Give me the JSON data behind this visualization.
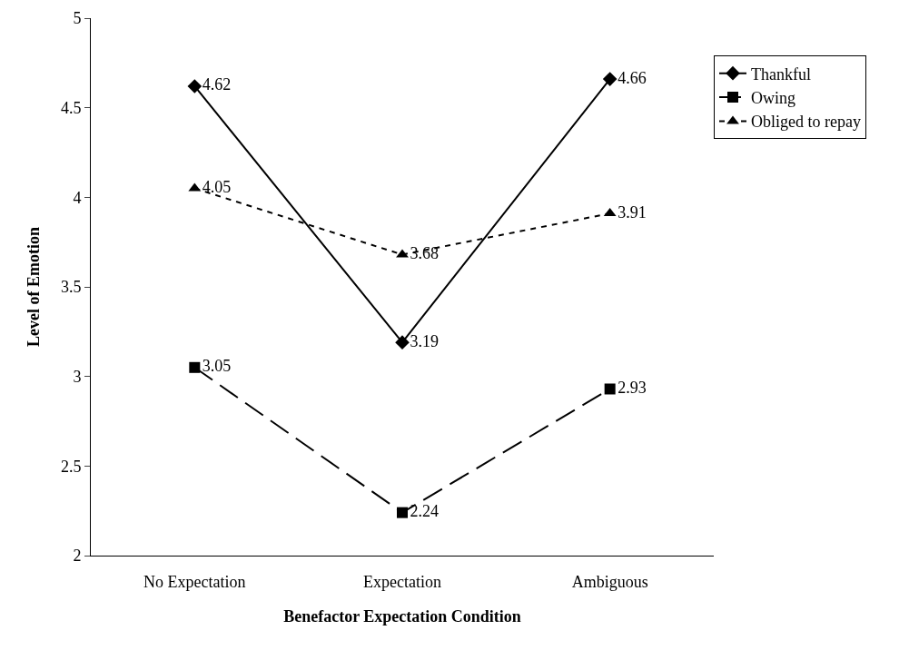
{
  "chart_data": {
    "type": "line",
    "xlabel": "Benefactor Expectation Condition",
    "ylabel": "Level of Emotion",
    "categories": [
      "No Expectation",
      "Expectation",
      "Ambiguous"
    ],
    "series": [
      {
        "name": "Thankful",
        "color": "#000000",
        "values": [
          4.62,
          3.19,
          4.66
        ],
        "marker": "diamond",
        "line_style": "solid"
      },
      {
        "name": "Owing",
        "color": "#000000",
        "values": [
          3.05,
          2.24,
          2.93
        ],
        "marker": "square",
        "line_style": "dashed"
      },
      {
        "name": "Obliged to repay",
        "color": "#000000",
        "values": [
          4.05,
          3.68,
          3.91
        ],
        "marker": "triangle",
        "line_style": "dotted"
      }
    ],
    "ylim": [
      2,
      5
    ],
    "yticks": [
      2,
      2.5,
      3,
      3.5,
      4,
      4.5,
      5
    ],
    "grid": false,
    "legend": "top right",
    "data_labels": true
  }
}
